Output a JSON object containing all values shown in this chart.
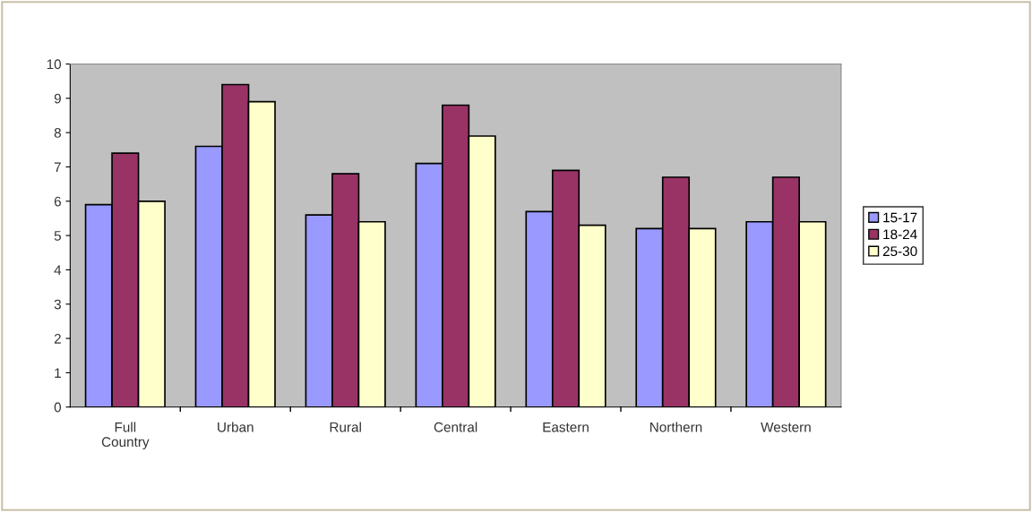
{
  "chart_data": {
    "type": "bar",
    "categories": [
      "Full\nCountry",
      "Urban",
      "Rural",
      "Central",
      "Eastern",
      "Northern",
      "Western"
    ],
    "series": [
      {
        "name": "15-17",
        "color": "#9999ff",
        "values": [
          5.9,
          7.6,
          5.6,
          7.1,
          5.7,
          5.2,
          5.4
        ]
      },
      {
        "name": "18-24",
        "color": "#993366",
        "values": [
          7.4,
          9.4,
          6.8,
          8.8,
          6.9,
          6.7,
          6.7
        ]
      },
      {
        "name": "25-30",
        "color": "#ffffcc",
        "values": [
          6.0,
          8.9,
          5.4,
          7.9,
          5.3,
          5.2,
          5.4
        ]
      }
    ],
    "ylim": [
      0,
      10
    ],
    "yticks": [
      0,
      1,
      2,
      3,
      4,
      5,
      6,
      7,
      8,
      9,
      10
    ],
    "grid": false,
    "legend": "right"
  }
}
